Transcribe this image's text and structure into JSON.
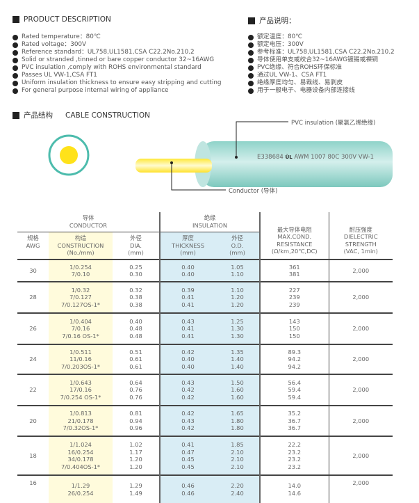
{
  "desc_en": {
    "title": "PRODUCT DESCRIPTION",
    "items": [
      "Rated temperature：80℃",
      "Rated voltage：300V",
      "Reference standard：UL758,UL1581,CSA C22.2No.210.2",
      "Solid or stranded ,tinned or bare copper conductor 32~16AWG",
      "PVC insulation ,comply with ROHS environmental standard",
      "Passes UL VW-1,CSA FT1",
      "Uniform insulation thickness to ensure easy stripping and cutting",
      "For general purpose internal wiring of appliance"
    ]
  },
  "desc_cn": {
    "title": "产品说明：",
    "items": [
      "额定温度：80℃",
      "额定电压：300V",
      "参考标准：UL758,UL1581,CSA C22.2No.210.2",
      "导体使用单支或绞合32~16AWG镀锡或裸铜",
      "PVC绝缘、符合ROHS环保标准",
      "通过UL VW-1、CSA FT1",
      "绝缘厚度均匀、易裁线、易剥皮",
      "用于一般电子、电器设备内部连接线"
    ]
  },
  "construction": {
    "title_cn": "产品结构",
    "title_en": "CABLE CONSTRUCTION",
    "insulation_label": "PVC insulation (聚氯乙烯绝缘)",
    "conductor_label": "Conductor (导体)",
    "print": "E338684",
    "print_rest": "AWM 1007 80C 300V VW-1",
    "ul_mark": "UL",
    "colors": {
      "insulation": "#8fd3c9",
      "conductor": "#ffe21a"
    }
  },
  "table": {
    "group_conductor": [
      "导体",
      "CONDUCTOR"
    ],
    "group_insulation": [
      "绝缘",
      "INSULATION"
    ],
    "headers": {
      "awg": [
        "规格",
        "AWG"
      ],
      "construction": [
        "构造",
        "CONSTRUCTION",
        "(No./mm)"
      ],
      "dia": [
        "外径",
        "DIA.",
        "(mm)"
      ],
      "thickness": [
        "厚度",
        "THICKNESS",
        "(mm)"
      ],
      "od": [
        "外径",
        "O.D.",
        "(mm)"
      ],
      "resistance": [
        "最大导体电阻",
        "MAX.COND.",
        "RESISTANCE",
        "(Ω/km,20℃,DC)"
      ],
      "dielectric": [
        "耐压强度",
        "DIELECTRIC",
        "STRENGTH",
        "(VAC, 1min)"
      ]
    },
    "rows": [
      {
        "awg": "30",
        "construction": [
          "1/0.254",
          "7/0.10"
        ],
        "dia": [
          "0.25",
          "0.30"
        ],
        "thickness": [
          "0.40",
          "0.40"
        ],
        "od": [
          "1.05",
          "1.10"
        ],
        "resistance": [
          "361",
          "381"
        ],
        "dielectric": "2,000"
      },
      {
        "awg": "28",
        "construction": [
          "1/0.32",
          "7/0.127",
          "7/0.127OS-1*"
        ],
        "dia": [
          "0.32",
          "0.38",
          "0.38"
        ],
        "thickness": [
          "0.39",
          "0.41",
          "0.41"
        ],
        "od": [
          "1.10",
          "1.20",
          "1.20"
        ],
        "resistance": [
          "227",
          "239",
          "239"
        ],
        "dielectric": "2,000"
      },
      {
        "awg": "26",
        "construction": [
          "1/0.404",
          "7/0.16",
          "7/0.16 OS-1*"
        ],
        "dia": [
          "0.40",
          "0.48",
          "0.48"
        ],
        "thickness": [
          "0.43",
          "0.41",
          "0.41"
        ],
        "od": [
          "1.25",
          "1.30",
          "1.30"
        ],
        "resistance": [
          "143",
          "150",
          "150"
        ],
        "dielectric": "2,000"
      },
      {
        "awg": "24",
        "construction": [
          "1/0.511",
          "11/0.16",
          "7/0.203OS-1*"
        ],
        "dia": [
          "0.51",
          "0.61",
          "0.61"
        ],
        "thickness": [
          "0.42",
          "0.40",
          "0.40"
        ],
        "od": [
          "1.35",
          "1.40",
          "1.40"
        ],
        "resistance": [
          "89.3",
          "94.2",
          "94.2"
        ],
        "dielectric": "2,000"
      },
      {
        "awg": "22",
        "construction": [
          "1/0.643",
          "17/0.16",
          "7/0.254 OS-1*"
        ],
        "dia": [
          "0.64",
          "0.76",
          "0.76"
        ],
        "thickness": [
          "0.43",
          "0.42",
          "0.42"
        ],
        "od": [
          "1.50",
          "1.60",
          "1.60"
        ],
        "resistance": [
          "56.4",
          "59.4",
          "59.4"
        ],
        "dielectric": "2,000"
      },
      {
        "awg": "20",
        "construction": [
          "1/0.813",
          "21/0.178",
          "7/0.32OS-1*"
        ],
        "dia": [
          "0.81",
          "0.94",
          "0.96"
        ],
        "thickness": [
          "0.42",
          "0.43",
          "0.42"
        ],
        "od": [
          "1.65",
          "1.80",
          "1.80"
        ],
        "resistance": [
          "35.2",
          "36.7",
          "36.7"
        ],
        "dielectric": "2,000"
      },
      {
        "awg": "18",
        "construction": [
          "1/1.024",
          "16/0.254",
          "34/0.178",
          "7/0.404OS-1*"
        ],
        "dia": [
          "1.02",
          "1.17",
          "1.20",
          "1.20"
        ],
        "thickness": [
          "0.41",
          "0.47",
          "0.45",
          "0.45"
        ],
        "od": [
          "1.85",
          "2.10",
          "2.10",
          "2.10"
        ],
        "resistance": [
          "22.2",
          "23.2",
          "23.2",
          "23.2"
        ],
        "dielectric": "2,000"
      },
      {
        "awg": "16",
        "construction": [
          "1/1.29",
          "26/0.254"
        ],
        "dia": [
          "1.29",
          "1.49"
        ],
        "thickness": [
          "0.46",
          "0.46"
        ],
        "od": [
          "2.20",
          "2.40"
        ],
        "resistance": [
          "14.0",
          "14.6"
        ],
        "dielectric": "2,000"
      }
    ]
  }
}
